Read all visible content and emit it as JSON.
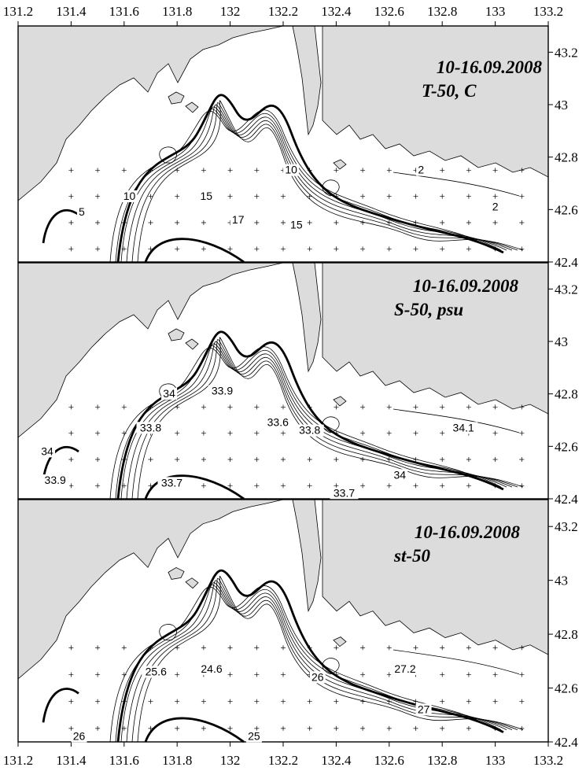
{
  "figure": {
    "x_ticks": [
      "131.2",
      "131.4",
      "131.6",
      "131.8",
      "132",
      "132.2",
      "132.4",
      "132.6",
      "132.8",
      "133",
      "133.2"
    ],
    "y_ticks": [
      "43.2",
      "43",
      "42.8",
      "42.6",
      "42.4"
    ],
    "land_color": "#dcdcdc",
    "water_color": "#ffffff"
  },
  "panels": [
    {
      "id": "temperature",
      "title_date": "10-16.09.2008",
      "title_var": "T-50, C",
      "labels": [
        {
          "text": "5",
          "lon": 131.44,
          "lat": 42.58
        },
        {
          "text": "10",
          "lon": 131.62,
          "lat": 42.64
        },
        {
          "text": "15",
          "lon": 131.91,
          "lat": 42.64
        },
        {
          "text": "17",
          "lon": 132.03,
          "lat": 42.55
        },
        {
          "text": "10",
          "lon": 132.23,
          "lat": 42.74
        },
        {
          "text": "15",
          "lon": 132.25,
          "lat": 42.53
        },
        {
          "text": "2",
          "lon": 132.72,
          "lat": 42.74
        },
        {
          "text": "2",
          "lon": 133.0,
          "lat": 42.6
        }
      ]
    },
    {
      "id": "salinity",
      "title_date": "10-16.09.2008",
      "title_var": "S-50, psu",
      "labels": [
        {
          "text": "34",
          "lon": 131.31,
          "lat": 42.57
        },
        {
          "text": "34",
          "lon": 131.77,
          "lat": 42.79
        },
        {
          "text": "33.9",
          "lon": 131.97,
          "lat": 42.8
        },
        {
          "text": "33.8",
          "lon": 131.7,
          "lat": 42.66
        },
        {
          "text": "33.6",
          "lon": 132.18,
          "lat": 42.68
        },
        {
          "text": "33.8",
          "lon": 132.3,
          "lat": 42.65
        },
        {
          "text": "34.1",
          "lon": 132.88,
          "lat": 42.66
        },
        {
          "text": "33.9",
          "lon": 131.34,
          "lat": 42.46
        },
        {
          "text": "33.7",
          "lon": 131.78,
          "lat": 42.45
        },
        {
          "text": "33.7",
          "lon": 132.43,
          "lat": 42.41
        },
        {
          "text": "34",
          "lon": 132.64,
          "lat": 42.48
        }
      ]
    },
    {
      "id": "density",
      "title_date": "10-16.09.2008",
      "title_var": "st-50",
      "labels": [
        {
          "text": "25.6",
          "lon": 131.72,
          "lat": 42.65
        },
        {
          "text": "24.6",
          "lon": 131.93,
          "lat": 42.66
        },
        {
          "text": "26",
          "lon": 132.33,
          "lat": 42.63
        },
        {
          "text": "27.2",
          "lon": 132.66,
          "lat": 42.66
        },
        {
          "text": "27",
          "lon": 132.73,
          "lat": 42.51
        },
        {
          "text": "26",
          "lon": 131.43,
          "lat": 42.41
        },
        {
          "text": "25",
          "lon": 132.09,
          "lat": 42.41
        }
      ]
    }
  ]
}
